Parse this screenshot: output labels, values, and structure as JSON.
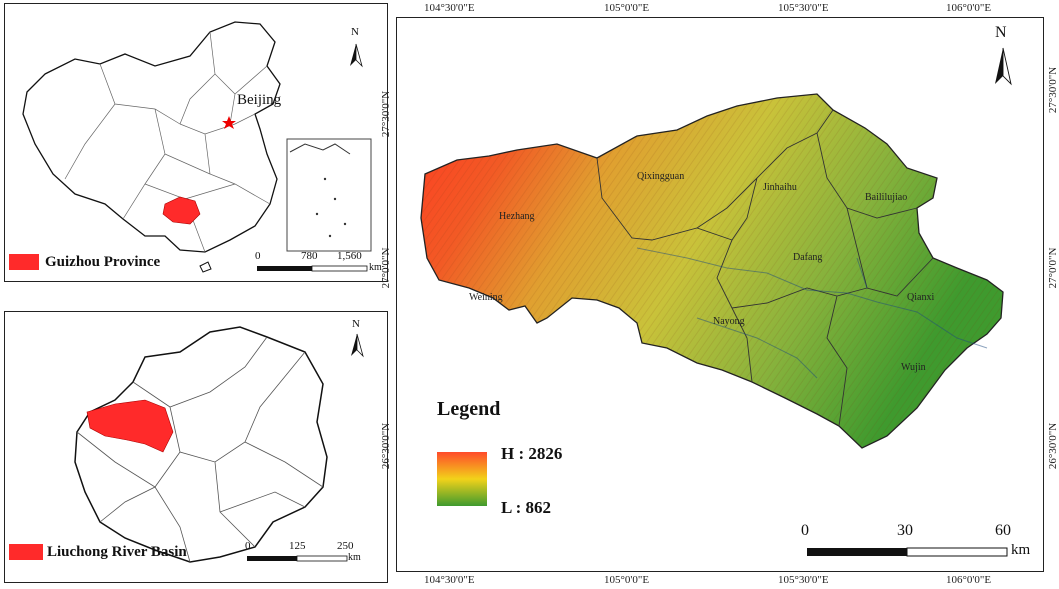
{
  "china_inset": {
    "capital_label": "Beijing",
    "highlight_label": "Guizhou Province",
    "highlight_color": "#ff2a2a",
    "scale_labels": [
      "0",
      "780",
      "1,560"
    ],
    "scale_unit": "km",
    "north_label": "N"
  },
  "guizhou_inset": {
    "highlight_label": "Liuchong River Basin",
    "highlight_color": "#ff2a2a",
    "scale_labels": [
      "0",
      "125",
      "250"
    ],
    "scale_unit": "km",
    "north_label": "N"
  },
  "main_map": {
    "top_longitudes": [
      "104°30'0\"E",
      "105°0'0\"E",
      "105°30'0\"E",
      "106°0'0\"E"
    ],
    "bottom_longitudes": [
      "104°30'0\"E",
      "105°0'0\"E",
      "105°30'0\"E",
      "106°0'0\"E"
    ],
    "left_latitudes": [
      "27°30'0\"N",
      "27°0'0\"N",
      "26°30'0\"N"
    ],
    "right_latitudes": [
      "27°30'0\"N",
      "27°0'0\"N",
      "26°30'0\"N"
    ],
    "counties": [
      "Hezhang",
      "Qixingguan",
      "Jinhaihu",
      "Baililujiao",
      "Dafang",
      "Qianxi",
      "Nayong",
      "Weining",
      "Qianxi",
      "Wujin"
    ],
    "legend": {
      "title": "Legend",
      "high_label": "H : 2826",
      "low_label": "L : 862",
      "high_color": "#ff4a2a",
      "mid_color": "#f2d21a",
      "low_color": "#3f9a2e"
    },
    "scale_labels": [
      "0",
      "30",
      "60"
    ],
    "scale_unit": "km",
    "north_label": "N"
  }
}
